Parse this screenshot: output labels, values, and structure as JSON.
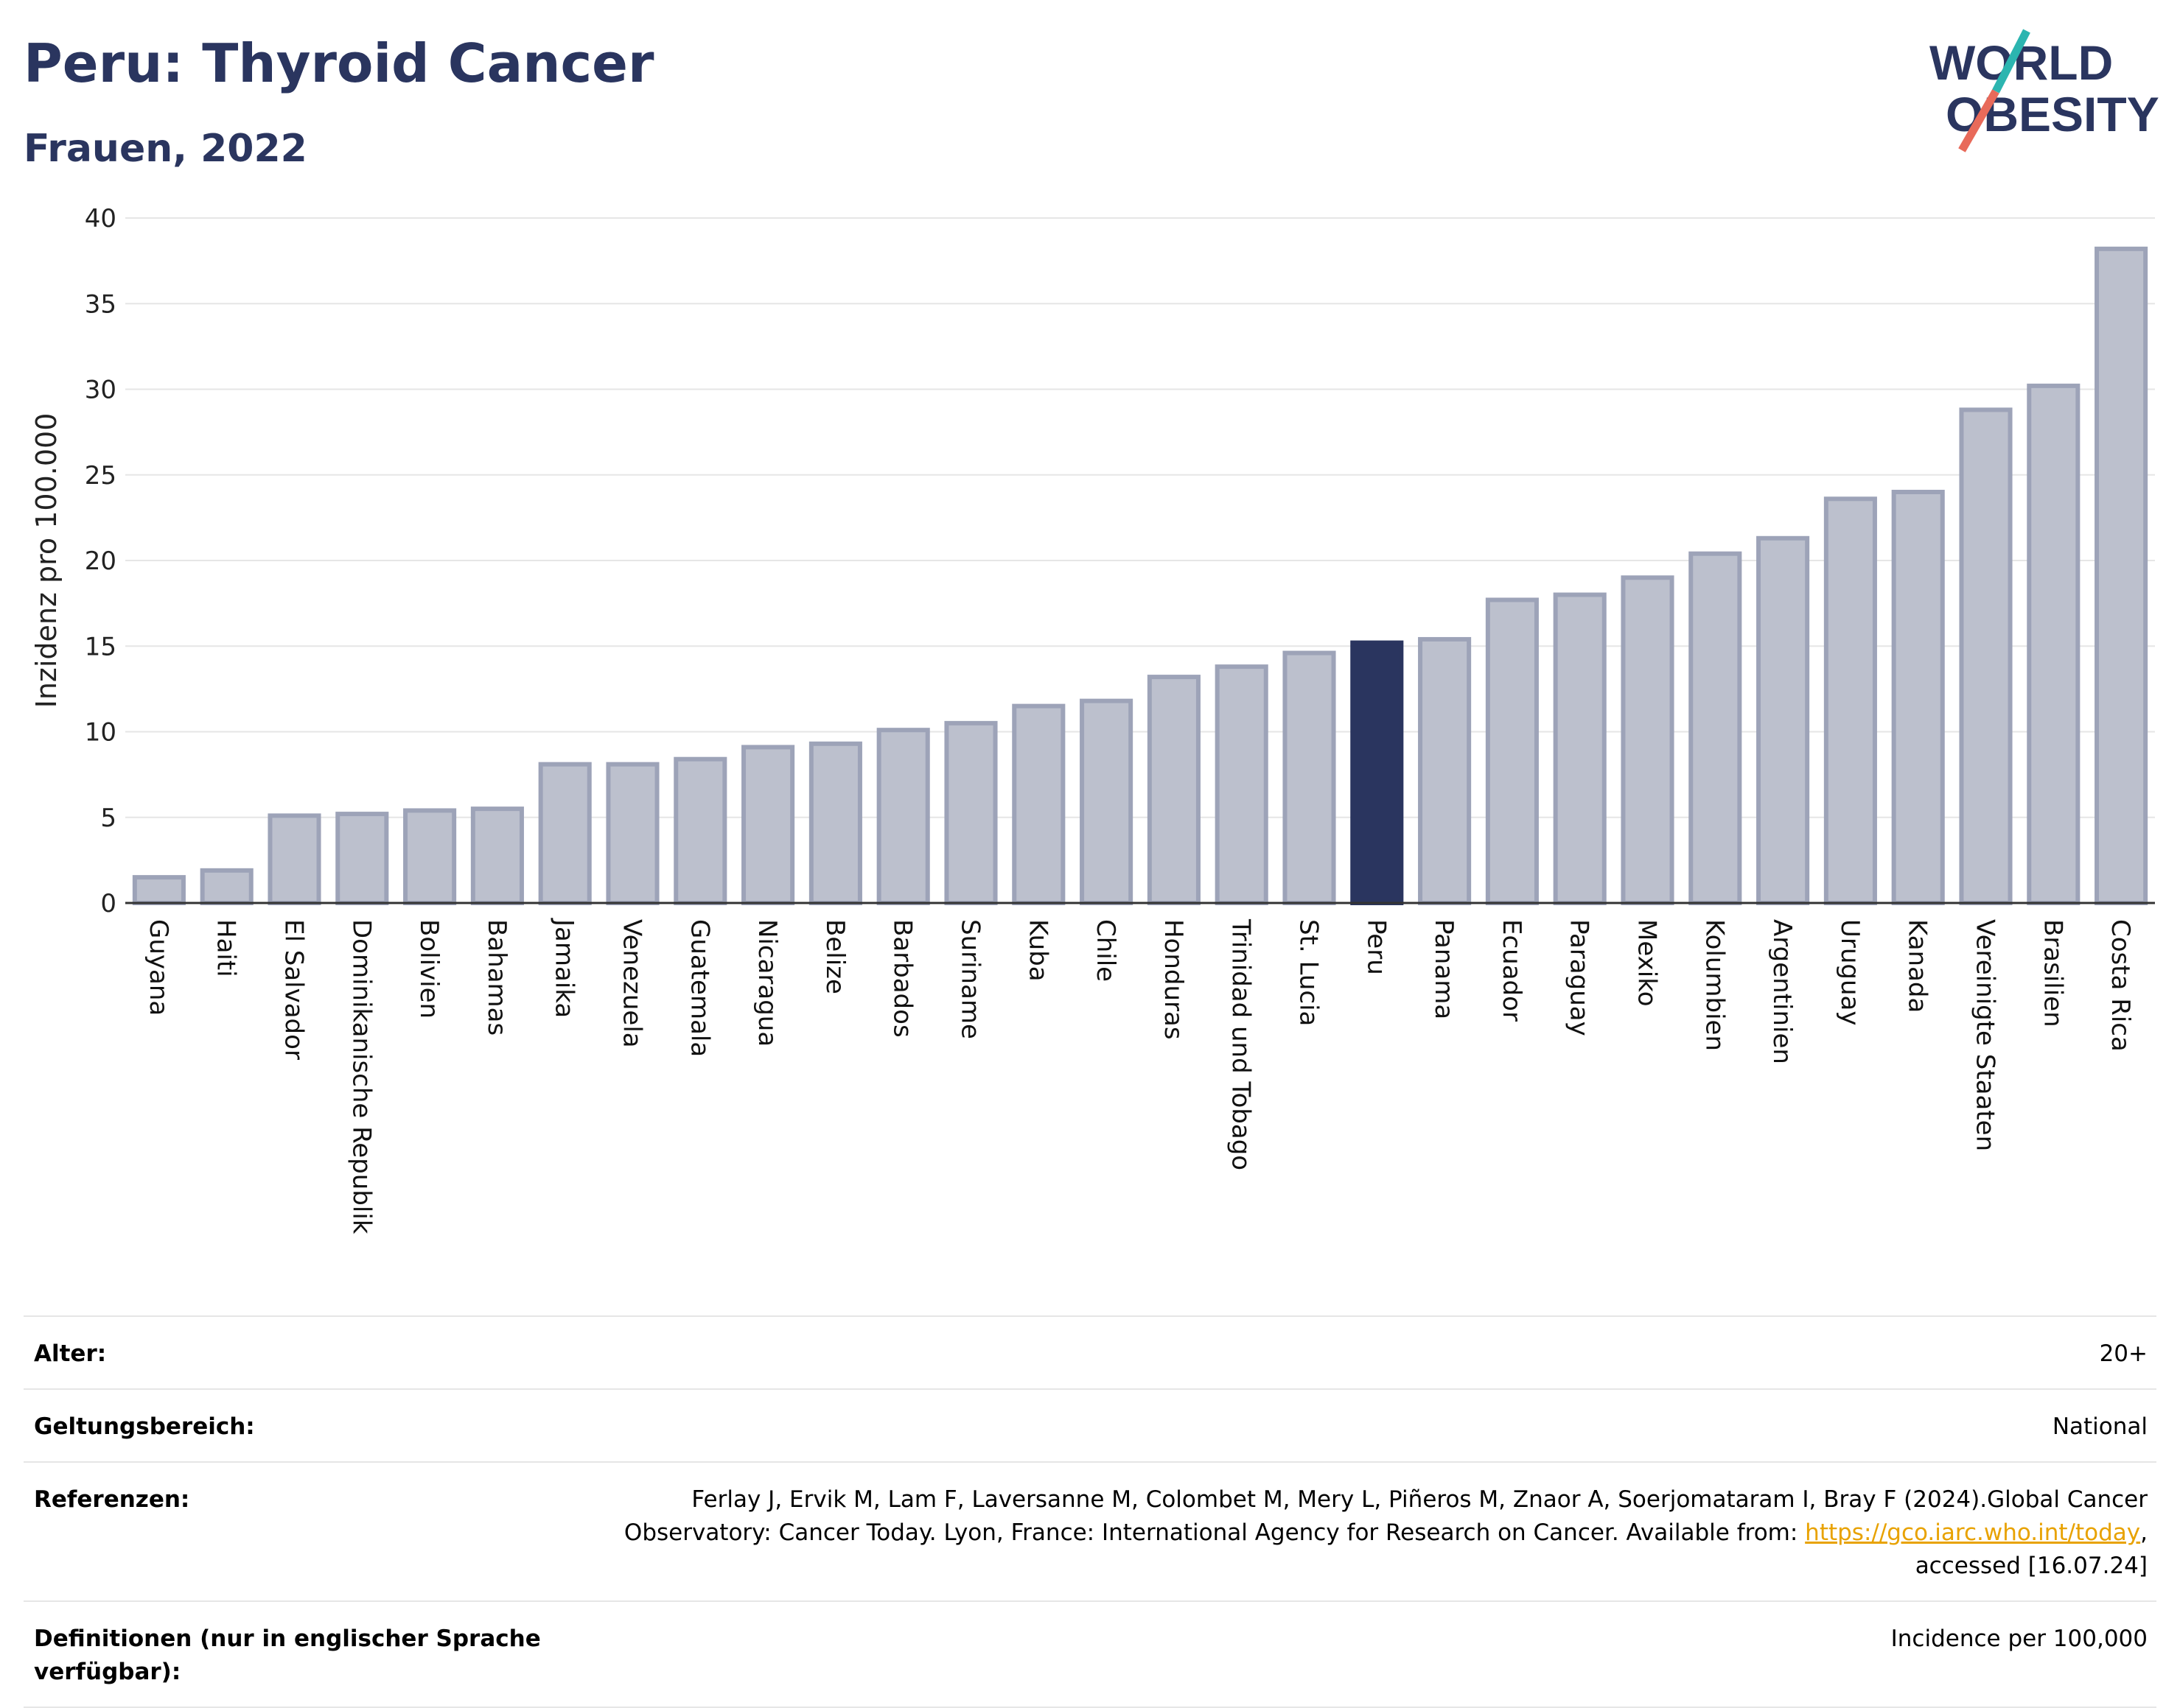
{
  "header": {
    "title": "Peru: Thyroid Cancer",
    "subtitle": "Frauen, 2022"
  },
  "logo": {
    "line1": "WORLD",
    "line2": "OBESITY",
    "colors": {
      "text": "#2a355f",
      "slash_top": "#2cb5b0",
      "slash_bottom": "#e86a5a"
    }
  },
  "chart_data": {
    "type": "bar",
    "ylabel": "Inzidenz pro 100.000",
    "xlabel": "",
    "ylim": [
      0,
      40
    ],
    "yticks": [
      0,
      5,
      10,
      15,
      20,
      25,
      30,
      35,
      40
    ],
    "grid": true,
    "highlight": "Peru",
    "colors": {
      "bar": "#bcc0cd",
      "bar_border": "#9da3b8",
      "highlight": "#2a355f",
      "grid": "#e6e6e6",
      "axis": "#333333"
    },
    "categories": [
      "Guyana",
      "Haiti",
      "El Salvador",
      "Dominikanische Republik",
      "Bolivien",
      "Bahamas",
      "Jamaika",
      "Venezuela",
      "Guatemala",
      "Nicaragua",
      "Belize",
      "Barbados",
      "Suriname",
      "Kuba",
      "Chile",
      "Honduras",
      "Trinidad und Tobago",
      "St. Lucia",
      "Peru",
      "Panama",
      "Ecuador",
      "Paraguay",
      "Mexiko",
      "Kolumbien",
      "Argentinien",
      "Uruguay",
      "Kanada",
      "Vereinigte Staaten",
      "Brasilien",
      "Costa Rica"
    ],
    "values": [
      1.5,
      1.9,
      5.1,
      5.2,
      5.4,
      5.5,
      8.1,
      8.1,
      8.4,
      9.1,
      9.3,
      10.1,
      10.5,
      11.5,
      11.8,
      13.2,
      13.8,
      14.6,
      15.2,
      15.4,
      17.7,
      18.0,
      19.0,
      20.4,
      21.3,
      23.6,
      24.0,
      28.8,
      30.2,
      38.2
    ]
  },
  "meta": {
    "rows": [
      {
        "label": "Alter:",
        "value": "20+"
      },
      {
        "label": "Geltungsbereich:",
        "value": "National"
      },
      {
        "label": "Referenzen:",
        "value_line1": "Ferlay J, Ervik M, Lam F, Laversanne M, Colombet M, Mery L, Piñeros M, Znaor A, Soerjomataram I, Bray F (2024).Global Cancer",
        "value_line2_pre": "Observatory: Cancer Today. Lyon, France: International Agency for Research on Cancer. Available from: ",
        "value_link": "https://gco.iarc.who.int/today",
        "value_line2_post": ",",
        "value_line3": "accessed [16.07.24]"
      },
      {
        "label": "Definitionen (nur in englischer Sprache verfügbar):",
        "value": "Incidence per 100,000"
      }
    ]
  }
}
